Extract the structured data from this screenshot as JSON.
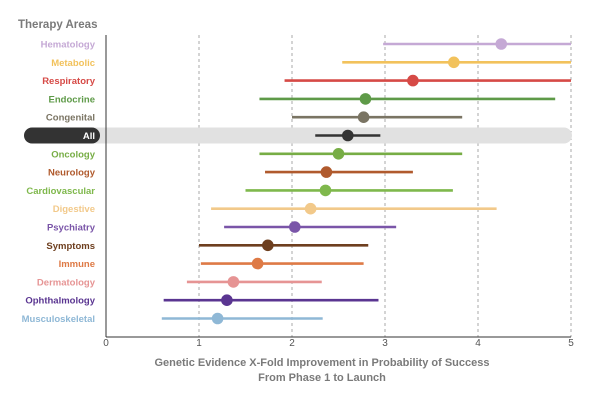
{
  "chart_data": {
    "type": "forest",
    "title": "Therapy Areas",
    "xlabel": [
      "Genetic Evidence X-Fold Improvement in Probability of Success",
      "From Phase 1 to Launch"
    ],
    "xlim": [
      0,
      5
    ],
    "xticks": [
      0,
      1,
      2,
      3,
      4,
      5
    ],
    "grid": "vertical dashed at 1, 2, 3, 4, 5",
    "highlight_category": "All",
    "rows": [
      {
        "label": "Hematology",
        "estimate": 4.25,
        "low": 2.98,
        "high": 5.0,
        "color": "#c5a9d5"
      },
      {
        "label": "Metabolic",
        "estimate": 3.74,
        "low": 2.54,
        "high": 5.0,
        "color": "#f2c25c"
      },
      {
        "label": "Respiratory",
        "estimate": 3.3,
        "low": 1.92,
        "high": 5.0,
        "color": "#d64a46"
      },
      {
        "label": "Endocrine",
        "estimate": 2.79,
        "low": 1.65,
        "high": 4.83,
        "color": "#5e9a48"
      },
      {
        "label": "Congenital",
        "estimate": 2.77,
        "low": 2.0,
        "high": 3.83,
        "color": "#7a7463"
      },
      {
        "label": "All",
        "estimate": 2.6,
        "low": 2.25,
        "high": 2.95,
        "color": "#333333"
      },
      {
        "label": "Oncology",
        "estimate": 2.5,
        "low": 1.65,
        "high": 3.83,
        "color": "#77ad45"
      },
      {
        "label": "Neurology",
        "estimate": 2.37,
        "low": 1.71,
        "high": 3.3,
        "color": "#b05a2d"
      },
      {
        "label": "Cardiovascular",
        "estimate": 2.36,
        "low": 1.5,
        "high": 3.73,
        "color": "#7fb84c"
      },
      {
        "label": "Digestive",
        "estimate": 2.2,
        "low": 1.13,
        "high": 4.2,
        "color": "#f2c98a"
      },
      {
        "label": "Psychiatry",
        "estimate": 2.03,
        "low": 1.27,
        "high": 3.12,
        "color": "#7a55a8"
      },
      {
        "label": "Symptoms",
        "estimate": 1.74,
        "low": 1.0,
        "high": 2.82,
        "color": "#6e3f1f"
      },
      {
        "label": "Immune",
        "estimate": 1.63,
        "low": 1.02,
        "high": 2.77,
        "color": "#de7a46"
      },
      {
        "label": "Dermatology",
        "estimate": 1.37,
        "low": 0.87,
        "high": 2.32,
        "color": "#e69494"
      },
      {
        "label": "Ophthalmology",
        "estimate": 1.3,
        "low": 0.62,
        "high": 2.93,
        "color": "#5a3591"
      },
      {
        "label": "Musculoskeletal",
        "estimate": 1.2,
        "low": 0.6,
        "high": 2.33,
        "color": "#8fb8d6"
      }
    ]
  }
}
